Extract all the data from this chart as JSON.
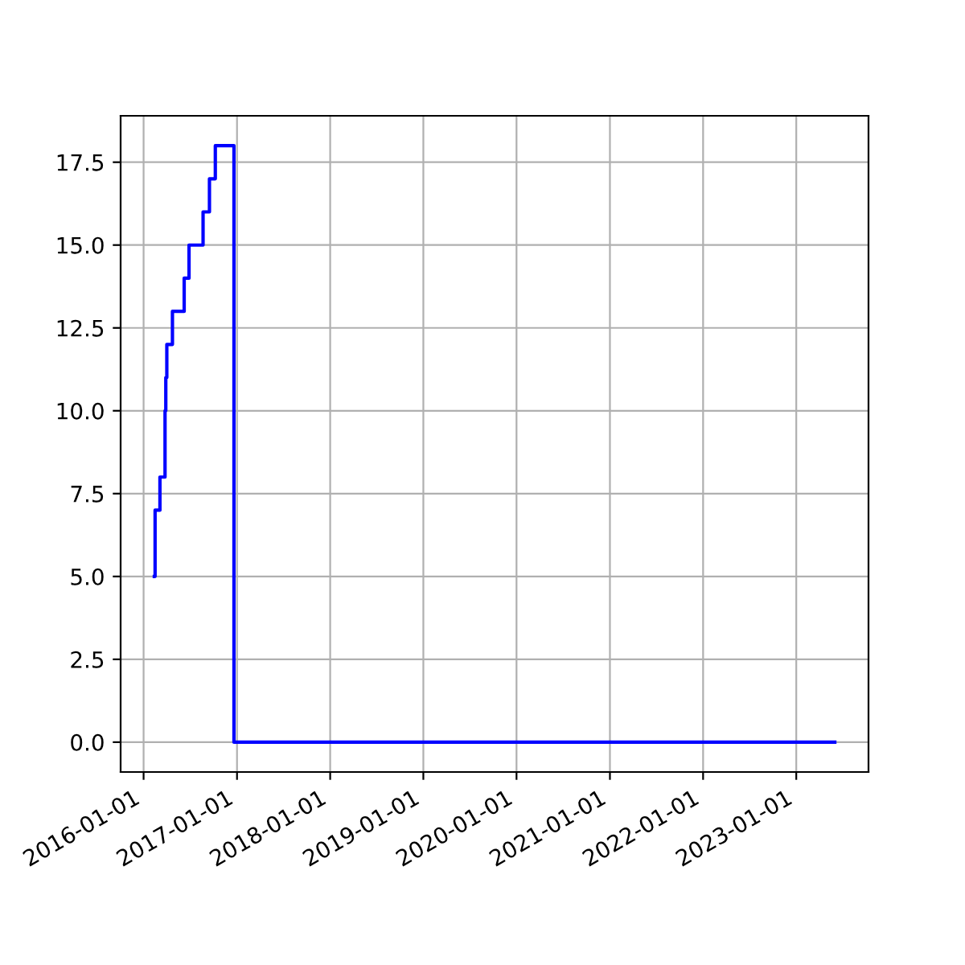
{
  "chart_data": {
    "type": "step",
    "x": [
      "2016-02-12",
      "2016-02-15",
      "2016-03-05",
      "2016-03-25",
      "2016-03-28",
      "2016-04-01",
      "2016-04-23",
      "2016-06-08",
      "2016-06-27",
      "2016-08-21",
      "2016-09-15",
      "2016-10-08",
      "2016-12-20",
      "2023-06-01"
    ],
    "series": [
      {
        "color": "#0000ff",
        "values": [
          5,
          7,
          8,
          10,
          11,
          12,
          13,
          14,
          15,
          16,
          17,
          18,
          0,
          0
        ]
      }
    ],
    "xlim": [
      "2015-10-03",
      "2023-10-11"
    ],
    "xticks": [
      "2016-01-01",
      "2017-01-01",
      "2018-01-01",
      "2019-01-01",
      "2020-01-01",
      "2021-01-01",
      "2022-01-01",
      "2023-01-01"
    ],
    "ylim": [
      -0.9,
      18.9
    ],
    "yticks": [
      {
        "value": 0,
        "label": "0.0"
      },
      {
        "value": 2.5,
        "label": "2.5"
      },
      {
        "value": 5,
        "label": "5.0"
      },
      {
        "value": 7.5,
        "label": "7.5"
      },
      {
        "value": 10,
        "label": "10.0"
      },
      {
        "value": 12.5,
        "label": "12.5"
      },
      {
        "value": 15,
        "label": "15.0"
      },
      {
        "value": 17.5,
        "label": "17.5"
      }
    ],
    "grid": true
  }
}
